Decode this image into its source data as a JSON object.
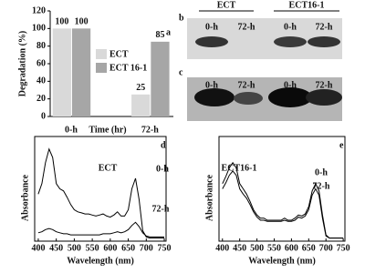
{
  "chart_data": [
    {
      "type": "bar",
      "panel": "a",
      "x_label": "Time (hr)",
      "y_label": "Degradation (%)",
      "categories": [
        "0-h",
        "72-h"
      ],
      "series": [
        {
          "name": "ECT",
          "color": "#d9d9d9",
          "values": [
            100,
            25
          ]
        },
        {
          "name": "ECT 16-1",
          "color": "#a6a6a6",
          "values": [
            100,
            85
          ]
        }
      ],
      "ylim": [
        0,
        120
      ],
      "yticks": [
        0,
        20,
        40,
        60,
        80,
        100,
        120
      ]
    },
    {
      "type": "line",
      "panel": "d",
      "annotation": "ECT",
      "x_label": "Wavelength (nm)",
      "y_label": "Absorbance",
      "x": [
        400,
        410,
        420,
        430,
        440,
        450,
        460,
        470,
        480,
        490,
        500,
        510,
        520,
        530,
        540,
        550,
        560,
        570,
        580,
        590,
        600,
        610,
        620,
        630,
        640,
        650,
        660,
        670,
        680,
        690,
        700,
        710,
        720,
        730,
        740,
        750
      ],
      "series": [
        {
          "name": "0-h",
          "color": "#000000",
          "values": [
            0.45,
            0.55,
            0.75,
            0.88,
            0.8,
            0.55,
            0.5,
            0.48,
            0.42,
            0.35,
            0.3,
            0.28,
            0.27,
            0.26,
            0.26,
            0.25,
            0.24,
            0.25,
            0.26,
            0.24,
            0.23,
            0.25,
            0.28,
            0.24,
            0.24,
            0.3,
            0.5,
            0.6,
            0.4,
            0.1,
            0.04,
            0.03,
            0.03,
            0.03,
            0.03,
            0.03
          ]
        },
        {
          "name": "72-h",
          "color": "#000000",
          "values": [
            0.08,
            0.09,
            0.11,
            0.12,
            0.11,
            0.09,
            0.08,
            0.07,
            0.07,
            0.06,
            0.06,
            0.06,
            0.06,
            0.06,
            0.06,
            0.06,
            0.06,
            0.06,
            0.07,
            0.07,
            0.07,
            0.08,
            0.09,
            0.08,
            0.09,
            0.11,
            0.15,
            0.18,
            0.14,
            0.08,
            0.05,
            0.04,
            0.04,
            0.04,
            0.04,
            0.04
          ]
        }
      ],
      "xlim": [
        390,
        755
      ],
      "ylim": [
        0,
        1
      ],
      "xticks": [
        400,
        450,
        500,
        550,
        600,
        650,
        700,
        750
      ]
    },
    {
      "type": "line",
      "panel": "e",
      "annotation": "ECT16-1",
      "x_label": "Wavelength (nm)",
      "y_label": "Absorbance",
      "x": [
        400,
        410,
        420,
        430,
        440,
        450,
        460,
        470,
        480,
        490,
        500,
        510,
        520,
        530,
        540,
        550,
        560,
        570,
        580,
        590,
        600,
        610,
        620,
        630,
        640,
        650,
        660,
        670,
        680,
        690,
        700,
        710,
        720,
        730,
        740,
        750
      ],
      "series": [
        {
          "name": "0-h",
          "color": "#000000",
          "values": [
            0.55,
            0.62,
            0.7,
            0.75,
            0.7,
            0.55,
            0.5,
            0.45,
            0.38,
            0.3,
            0.25,
            0.22,
            0.22,
            0.2,
            0.2,
            0.2,
            0.2,
            0.2,
            0.22,
            0.2,
            0.2,
            0.22,
            0.25,
            0.24,
            0.26,
            0.33,
            0.48,
            0.55,
            0.48,
            0.25,
            0.06,
            0.03,
            0.03,
            0.03,
            0.03,
            0.03
          ]
        },
        {
          "name": "72-h",
          "color": "#000000",
          "values": [
            0.5,
            0.56,
            0.63,
            0.67,
            0.63,
            0.5,
            0.45,
            0.41,
            0.35,
            0.28,
            0.23,
            0.2,
            0.2,
            0.19,
            0.19,
            0.19,
            0.19,
            0.19,
            0.2,
            0.19,
            0.19,
            0.2,
            0.23,
            0.22,
            0.24,
            0.3,
            0.44,
            0.5,
            0.44,
            0.22,
            0.05,
            0.03,
            0.03,
            0.03,
            0.03,
            0.03
          ]
        }
      ],
      "xlim": [
        390,
        755
      ],
      "ylim": [
        0,
        1
      ],
      "xticks": [
        400,
        450,
        500,
        550,
        600,
        650,
        700,
        750
      ]
    }
  ],
  "gels": [
    {
      "panel": "b",
      "groups": [
        "ECT",
        "ECT16-1"
      ],
      "lanes": [
        "0-h",
        "72-h",
        "0-h",
        "72-h"
      ]
    },
    {
      "panel": "c",
      "lanes": [
        "0-h",
        "72-h",
        "0-h",
        "72-h"
      ]
    }
  ]
}
